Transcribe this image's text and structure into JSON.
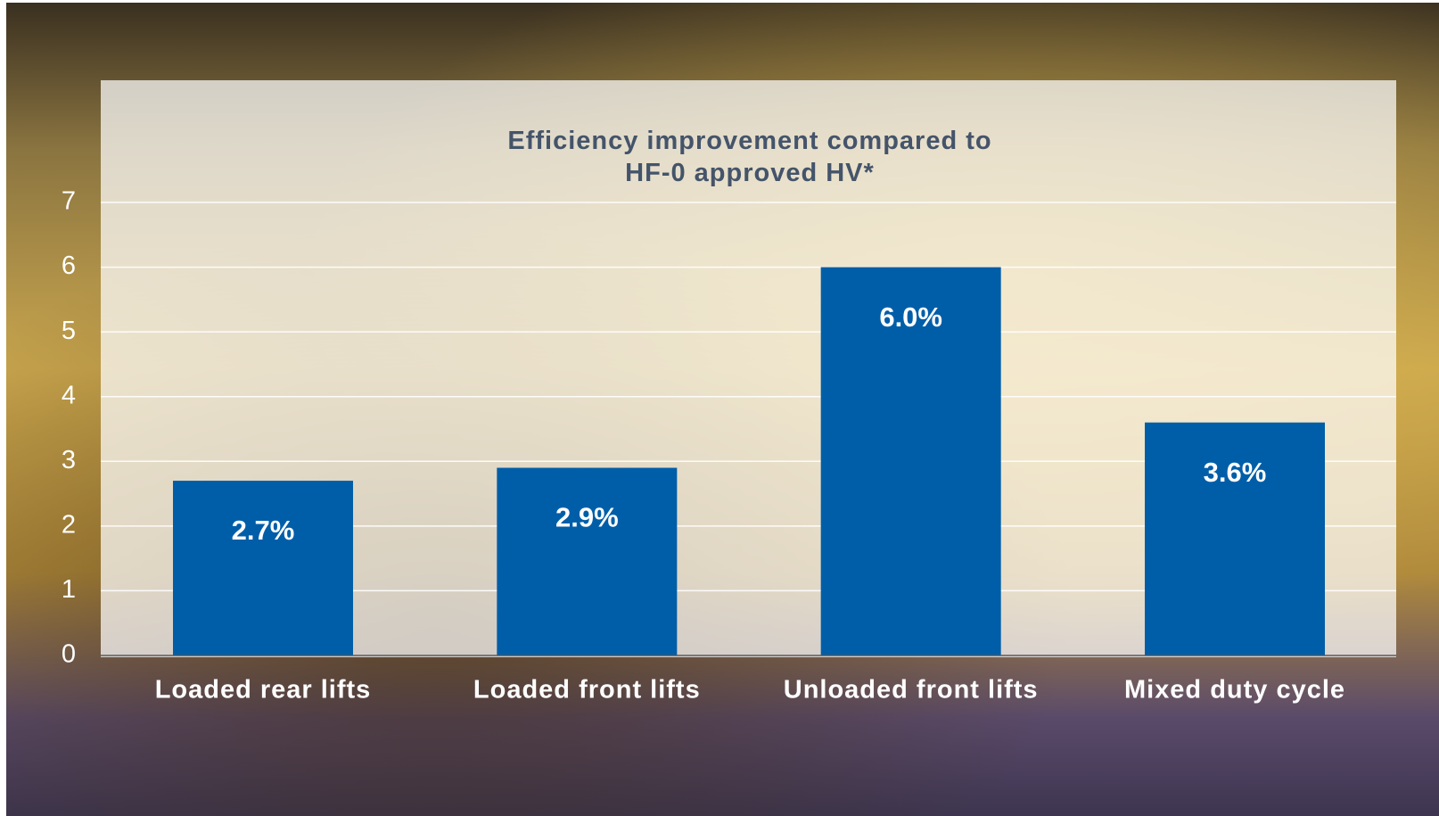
{
  "chart_data": {
    "type": "bar",
    "title": "Efficiency improvement compared to HF-0 approved HV*",
    "categories": [
      "Loaded rear lifts",
      "Loaded front lifts",
      "Unloaded front lifts",
      "Mixed duty cycle"
    ],
    "values": [
      2.7,
      2.9,
      6.0,
      3.6
    ],
    "value_labels": [
      "2.7%",
      "2.9%",
      "6.0%",
      "3.6%"
    ],
    "color": "#005ea8",
    "ylim": [
      0,
      7
    ],
    "yticks": [
      0,
      1,
      2,
      3,
      4,
      5,
      6,
      7
    ],
    "grid": true
  }
}
